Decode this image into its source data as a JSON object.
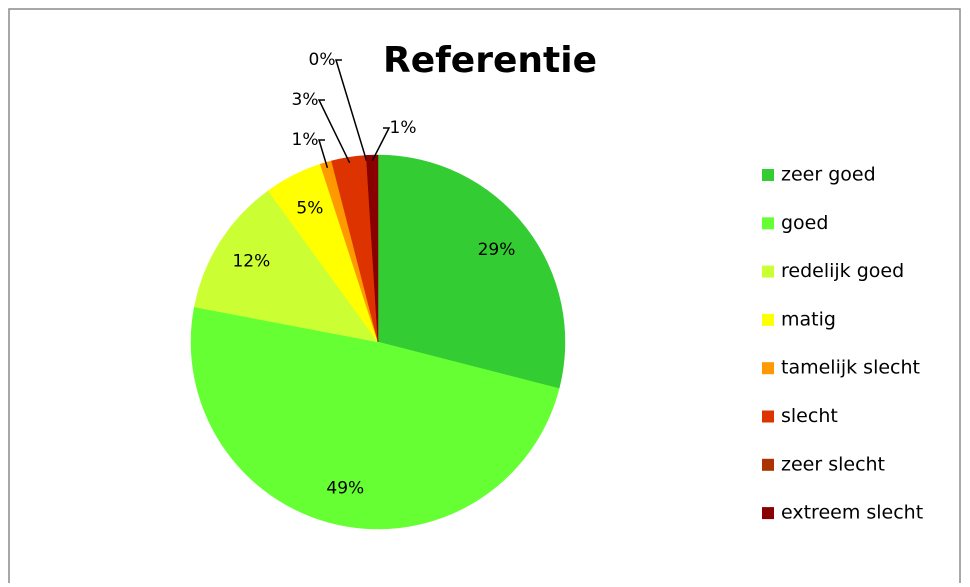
{
  "chart_data": {
    "type": "pie",
    "title": "Referentie",
    "categories": [
      "zeer goed",
      "goed",
      "redelijk goed",
      "matig",
      "tamelijk slecht",
      "slecht",
      "zeer slecht",
      "extreem slecht"
    ],
    "values": [
      29,
      49,
      12,
      5,
      1,
      3,
      0,
      1
    ],
    "value_labels": [
      "29%",
      "49%",
      "12%",
      "5%",
      "1%",
      "3%",
      "0%",
      "1%"
    ],
    "colors": [
      "#33cc33",
      "#66ff33",
      "#ccff33",
      "#ffff00",
      "#ff9900",
      "#dd3300",
      "#aa3300",
      "#880000"
    ],
    "legend": "right"
  }
}
